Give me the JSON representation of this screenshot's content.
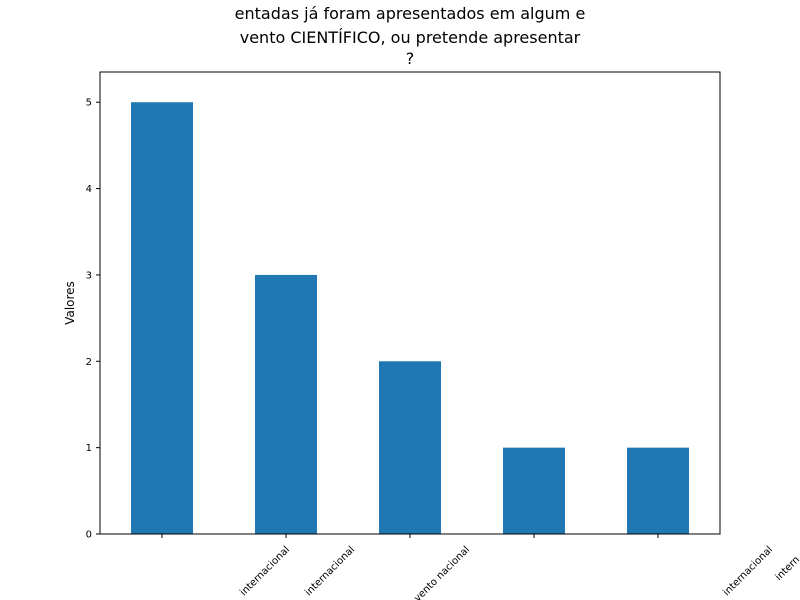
{
  "chart_data": {
    "type": "bar",
    "title_lines": [
      "entadas já foram apresentados em algum e",
      "vento CIENTÍFICO, ou pretende apresentar",
      "?"
    ],
    "ylabel": "Valores",
    "xlabel": "",
    "categories": [
      "",
      "",
      "",
      "",
      ""
    ],
    "values": [
      5,
      3,
      2,
      1,
      1
    ],
    "tick_label_fragments": [
      "internacional",
      "internacional",
      "vento nacional",
      "internacional",
      "intern"
    ],
    "ylim": [
      0,
      5.35
    ],
    "yticks": [
      0,
      1,
      2,
      3,
      4,
      5
    ],
    "bar_color": "#1f77b4",
    "grid": false
  }
}
